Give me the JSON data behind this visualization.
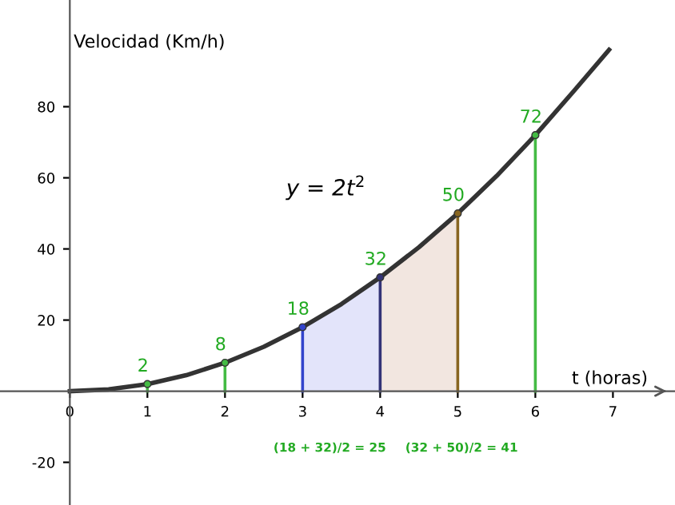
{
  "chart_data": {
    "type": "line",
    "xlabel": "t (horas)",
    "ylabel": "Velocidad (Km/h)",
    "xlim": [
      -0.9,
      7.8
    ],
    "ylim": [
      -32,
      110
    ],
    "xticks": [
      0,
      1,
      2,
      3,
      4,
      5,
      6,
      7
    ],
    "yticks": [
      -20,
      20,
      40,
      60,
      80
    ],
    "grid": false,
    "legend": false,
    "series": [
      {
        "type": "area",
        "color": "#e3e4fa",
        "x": [
          3,
          3.5,
          4
        ],
        "values": [
          18,
          24.5,
          32
        ]
      },
      {
        "type": "area",
        "color": "#f2e6e0",
        "x": [
          4,
          4.5,
          5
        ],
        "values": [
          32,
          40.5,
          50
        ]
      },
      {
        "color": "#333333",
        "marker": "none",
        "x": [
          0,
          0.5,
          1,
          1.5,
          2,
          2.5,
          3,
          3.5,
          4,
          4.5,
          5,
          5.5,
          6,
          6.5,
          6.95
        ],
        "values": [
          0,
          0.5,
          2,
          4.5,
          8,
          12.5,
          18,
          24.5,
          32,
          40.5,
          50,
          60.5,
          72,
          84.5,
          96
        ]
      },
      {
        "type": "lollipop",
        "color": "#22aa22",
        "colors": [
          "#44bb44",
          "#44bb44",
          "#3344cc",
          "#333377",
          "#886622",
          "#44bb44"
        ],
        "marker": "circle",
        "data_labels": true,
        "x": [
          1,
          2,
          3,
          4,
          5,
          6
        ],
        "values": [
          2,
          8,
          18,
          32,
          50,
          72
        ]
      }
    ],
    "annotations": [
      "y = 2t$^{2}$",
      "(18 + 32)/2 = 25",
      "(32 + 50)/2 = 41"
    ]
  }
}
